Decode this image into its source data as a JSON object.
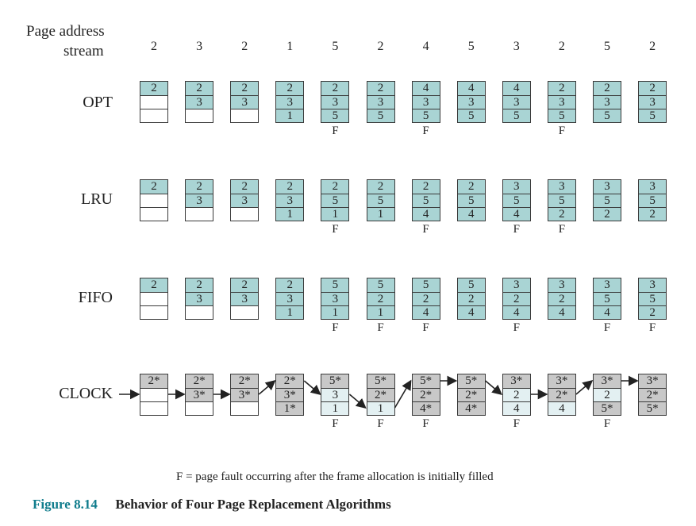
{
  "header": {
    "line1": "Page address",
    "line2": "stream"
  },
  "stream": [
    "2",
    "3",
    "2",
    "1",
    "5",
    "2",
    "4",
    "5",
    "3",
    "2",
    "5",
    "2"
  ],
  "colors": {
    "filled": "#a9d4d4",
    "empty": "#ffffff",
    "clock_gray": "#c8c8c8",
    "clock_light": "#e3f0f2",
    "caption_accent": "#0f7c8c"
  },
  "algorithms": [
    {
      "name": "OPT",
      "frames": [
        [
          "2",
          "",
          ""
        ],
        [
          "2",
          "3",
          ""
        ],
        [
          "2",
          "3",
          ""
        ],
        [
          "2",
          "3",
          "1"
        ],
        [
          "2",
          "3",
          "5"
        ],
        [
          "2",
          "3",
          "5"
        ],
        [
          "4",
          "3",
          "5"
        ],
        [
          "4",
          "3",
          "5"
        ],
        [
          "4",
          "3",
          "5"
        ],
        [
          "2",
          "3",
          "5"
        ],
        [
          "2",
          "3",
          "5"
        ],
        [
          "2",
          "3",
          "5"
        ]
      ],
      "faults": [
        "",
        "",
        "",
        "",
        "F",
        "",
        "F",
        "",
        "",
        "F",
        "",
        ""
      ]
    },
    {
      "name": "LRU",
      "frames": [
        [
          "2",
          "",
          ""
        ],
        [
          "2",
          "3",
          ""
        ],
        [
          "2",
          "3",
          ""
        ],
        [
          "2",
          "3",
          "1"
        ],
        [
          "2",
          "5",
          "1"
        ],
        [
          "2",
          "5",
          "1"
        ],
        [
          "2",
          "5",
          "4"
        ],
        [
          "2",
          "5",
          "4"
        ],
        [
          "3",
          "5",
          "4"
        ],
        [
          "3",
          "5",
          "2"
        ],
        [
          "3",
          "5",
          "2"
        ],
        [
          "3",
          "5",
          "2"
        ]
      ],
      "faults": [
        "",
        "",
        "",
        "",
        "F",
        "",
        "F",
        "",
        "F",
        "F",
        "",
        ""
      ]
    },
    {
      "name": "FIFO",
      "frames": [
        [
          "2",
          "",
          ""
        ],
        [
          "2",
          "3",
          ""
        ],
        [
          "2",
          "3",
          ""
        ],
        [
          "2",
          "3",
          "1"
        ],
        [
          "5",
          "3",
          "1"
        ],
        [
          "5",
          "2",
          "1"
        ],
        [
          "5",
          "2",
          "4"
        ],
        [
          "5",
          "2",
          "4"
        ],
        [
          "3",
          "2",
          "4"
        ],
        [
          "3",
          "2",
          "4"
        ],
        [
          "3",
          "5",
          "4"
        ],
        [
          "3",
          "5",
          "2"
        ]
      ],
      "faults": [
        "",
        "",
        "",
        "",
        "F",
        "F",
        "F",
        "",
        "F",
        "",
        "F",
        "F"
      ]
    },
    {
      "name": "CLOCK",
      "frames": [
        [
          "2*",
          "",
          ""
        ],
        [
          "2*",
          "3*",
          ""
        ],
        [
          "2*",
          "3*",
          ""
        ],
        [
          "2*",
          "3*",
          "1*"
        ],
        [
          "5*",
          "3",
          "1"
        ],
        [
          "5*",
          "2*",
          "1"
        ],
        [
          "5*",
          "2*",
          "4*"
        ],
        [
          "5*",
          "2*",
          "4*"
        ],
        [
          "3*",
          "2",
          "4"
        ],
        [
          "3*",
          "2*",
          "4"
        ],
        [
          "3*",
          "2",
          "5*"
        ],
        [
          "3*",
          "2*",
          "5*"
        ]
      ],
      "shade": [
        [
          "g",
          "w",
          "w"
        ],
        [
          "g",
          "g",
          "w"
        ],
        [
          "g",
          "g",
          "w"
        ],
        [
          "g",
          "g",
          "g"
        ],
        [
          "g",
          "l",
          "l"
        ],
        [
          "g",
          "g",
          "l"
        ],
        [
          "g",
          "g",
          "g"
        ],
        [
          "g",
          "g",
          "g"
        ],
        [
          "g",
          "l",
          "l"
        ],
        [
          "g",
          "g",
          "l"
        ],
        [
          "g",
          "l",
          "g"
        ],
        [
          "g",
          "g",
          "g"
        ]
      ],
      "pointer": [
        2,
        2,
        2,
        1,
        2,
        3,
        1,
        1,
        2,
        2,
        1,
        1
      ],
      "faults": [
        "",
        "",
        "",
        "",
        "F",
        "F",
        "F",
        "",
        "F",
        "",
        "F",
        ""
      ]
    }
  ],
  "footnote": "F = page fault occurring after the frame allocation is initially filled",
  "caption": {
    "label": "Figure 8.14",
    "title": "Behavior of Four Page Replacement Algorithms"
  }
}
